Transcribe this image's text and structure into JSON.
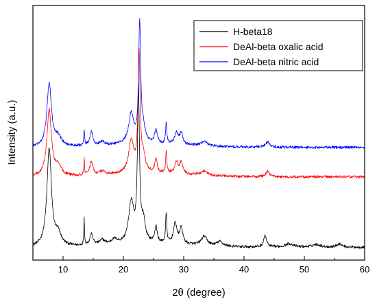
{
  "chart_data": {
    "type": "line",
    "title": "",
    "xlabel": "2θ (degree)",
    "ylabel": "Intensity (a.u.)",
    "xlim": [
      5,
      60
    ],
    "ylim": [
      0,
      1
    ],
    "x_ticks": [
      10,
      20,
      30,
      40,
      50,
      60
    ],
    "y_ticks": [],
    "grid": false,
    "legend_position": "top-right",
    "series": [
      {
        "name": "H-beta18",
        "color": "#000000",
        "offset": 0.0,
        "baseline": 0.02,
        "noise": 0.006,
        "peaks": [
          {
            "x": 7.7,
            "h": 0.43,
            "w": 0.45
          },
          {
            "x": 9.2,
            "h": 0.05,
            "w": 0.6
          },
          {
            "x": 13.5,
            "h": 0.12,
            "w": 0.07
          },
          {
            "x": 14.7,
            "h": 0.05,
            "w": 0.3
          },
          {
            "x": 16.5,
            "h": 0.02,
            "w": 0.5
          },
          {
            "x": 18.5,
            "h": 0.02,
            "w": 0.6
          },
          {
            "x": 21.3,
            "h": 0.18,
            "w": 0.5
          },
          {
            "x": 22.5,
            "h": 0.66,
            "w": 0.2
          },
          {
            "x": 23.3,
            "h": 0.09,
            "w": 0.4
          },
          {
            "x": 25.4,
            "h": 0.07,
            "w": 0.25
          },
          {
            "x": 27.1,
            "h": 0.13,
            "w": 0.12
          },
          {
            "x": 28.6,
            "h": 0.09,
            "w": 0.35
          },
          {
            "x": 29.6,
            "h": 0.07,
            "w": 0.3
          },
          {
            "x": 33.4,
            "h": 0.04,
            "w": 0.6
          },
          {
            "x": 36.0,
            "h": 0.02,
            "w": 0.6
          },
          {
            "x": 43.5,
            "h": 0.05,
            "w": 0.3
          },
          {
            "x": 47.5,
            "h": 0.015,
            "w": 0.8
          },
          {
            "x": 52.0,
            "h": 0.012,
            "w": 0.8
          },
          {
            "x": 55.8,
            "h": 0.015,
            "w": 0.5
          }
        ]
      },
      {
        "name": "DeAl-beta oxalic acid",
        "color": "#ff0000",
        "offset": 0.31,
        "baseline": 0.02,
        "noise": 0.006,
        "peaks": [
          {
            "x": 7.7,
            "h": 0.29,
            "w": 0.45
          },
          {
            "x": 9.2,
            "h": 0.04,
            "w": 0.6
          },
          {
            "x": 13.5,
            "h": 0.07,
            "w": 0.07
          },
          {
            "x": 14.7,
            "h": 0.06,
            "w": 0.3
          },
          {
            "x": 16.5,
            "h": 0.015,
            "w": 0.5
          },
          {
            "x": 21.3,
            "h": 0.14,
            "w": 0.5
          },
          {
            "x": 22.6,
            "h": 0.52,
            "w": 0.2
          },
          {
            "x": 23.3,
            "h": 0.07,
            "w": 0.4
          },
          {
            "x": 25.4,
            "h": 0.06,
            "w": 0.25
          },
          {
            "x": 27.1,
            "h": 0.09,
            "w": 0.12
          },
          {
            "x": 28.8,
            "h": 0.05,
            "w": 0.35
          },
          {
            "x": 29.6,
            "h": 0.05,
            "w": 0.3
          },
          {
            "x": 33.4,
            "h": 0.02,
            "w": 0.6
          },
          {
            "x": 43.9,
            "h": 0.025,
            "w": 0.35
          }
        ]
      },
      {
        "name": "DeAl-beta nitric acid",
        "color": "#0000ff",
        "offset": 0.44,
        "baseline": 0.02,
        "noise": 0.006,
        "peaks": [
          {
            "x": 7.7,
            "h": 0.28,
            "w": 0.45
          },
          {
            "x": 9.2,
            "h": 0.04,
            "w": 0.6
          },
          {
            "x": 13.5,
            "h": 0.07,
            "w": 0.07
          },
          {
            "x": 14.7,
            "h": 0.06,
            "w": 0.3
          },
          {
            "x": 16.5,
            "h": 0.015,
            "w": 0.5
          },
          {
            "x": 21.3,
            "h": 0.13,
            "w": 0.5
          },
          {
            "x": 22.7,
            "h": 0.52,
            "w": 0.2
          },
          {
            "x": 23.3,
            "h": 0.06,
            "w": 0.4
          },
          {
            "x": 25.4,
            "h": 0.06,
            "w": 0.25
          },
          {
            "x": 27.1,
            "h": 0.09,
            "w": 0.12
          },
          {
            "x": 28.8,
            "h": 0.05,
            "w": 0.35
          },
          {
            "x": 29.6,
            "h": 0.05,
            "w": 0.3
          },
          {
            "x": 33.4,
            "h": 0.02,
            "w": 0.6
          },
          {
            "x": 43.9,
            "h": 0.025,
            "w": 0.35
          }
        ]
      }
    ]
  }
}
